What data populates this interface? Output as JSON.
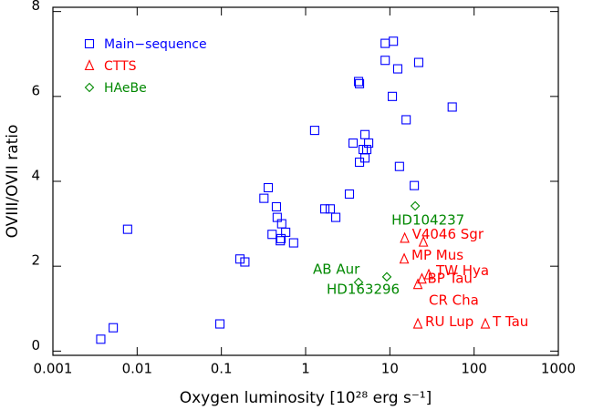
{
  "chart_data": {
    "type": "scatter",
    "xlabel": "Oxygen luminosity [10²⁸ erg s⁻¹]",
    "ylabel": "OVIII/OVII ratio",
    "xscale": "log",
    "xlim": [
      0.001,
      1000
    ],
    "xticks": [
      0.001,
      0.01,
      0.1,
      1,
      10,
      100,
      1000
    ],
    "ylim": [
      -0.1,
      8.1
    ],
    "yticks": [
      0,
      2,
      4,
      6,
      8
    ],
    "legend": "upper left",
    "series": [
      {
        "name": "Main−sequence",
        "color": "#0000ff",
        "marker": "square",
        "x": [
          0.0037,
          0.0052,
          0.0077,
          0.096,
          0.166,
          0.19,
          0.32,
          0.36,
          0.4,
          0.45,
          0.46,
          0.5,
          0.52,
          0.58,
          0.51,
          0.72,
          1.28,
          1.69,
          1.96,
          2.28,
          3.31,
          3.66,
          4.25,
          4.36,
          4.36,
          5.06,
          4.82,
          5.32,
          5.06,
          5.6,
          8.8,
          11,
          8.8,
          10.7,
          12.4,
          13,
          15.6,
          19.5,
          22,
          55
        ],
        "values": [
          0.28,
          0.55,
          2.87,
          0.64,
          2.17,
          2.1,
          3.6,
          3.85,
          2.75,
          3.4,
          3.15,
          2.6,
          3.0,
          2.8,
          2.65,
          2.55,
          5.2,
          3.35,
          3.35,
          3.15,
          3.7,
          4.9,
          6.35,
          6.3,
          4.45,
          5.1,
          4.75,
          4.75,
          4.55,
          4.9,
          7.25,
          7.3,
          6.85,
          6.0,
          6.65,
          4.35,
          5.45,
          3.9,
          6.8,
          5.75
        ]
      },
      {
        "name": "CTTS",
        "color": "#ff0000",
        "marker": "triangle",
        "x": [
          15,
          25,
          14.8,
          29,
          24,
          21.5,
          21.5,
          136
        ],
        "values": [
          2.66,
          2.57,
          2.17,
          1.8,
          1.7,
          1.57,
          0.64,
          0.64
        ],
        "labels": [
          "V4046 Sgr",
          null,
          "MP Mus",
          "TW Hya",
          "BP Tau",
          "CR Cha",
          "RU Lup",
          "T Tau"
        ]
      },
      {
        "name": "HAeBe",
        "color": "#008800",
        "marker": "diamond",
        "x": [
          20,
          4.25,
          9.2
        ],
        "values": [
          3.42,
          1.62,
          1.75
        ],
        "labels": [
          "HD104237",
          "AB Aur",
          "HD163296"
        ]
      }
    ]
  }
}
